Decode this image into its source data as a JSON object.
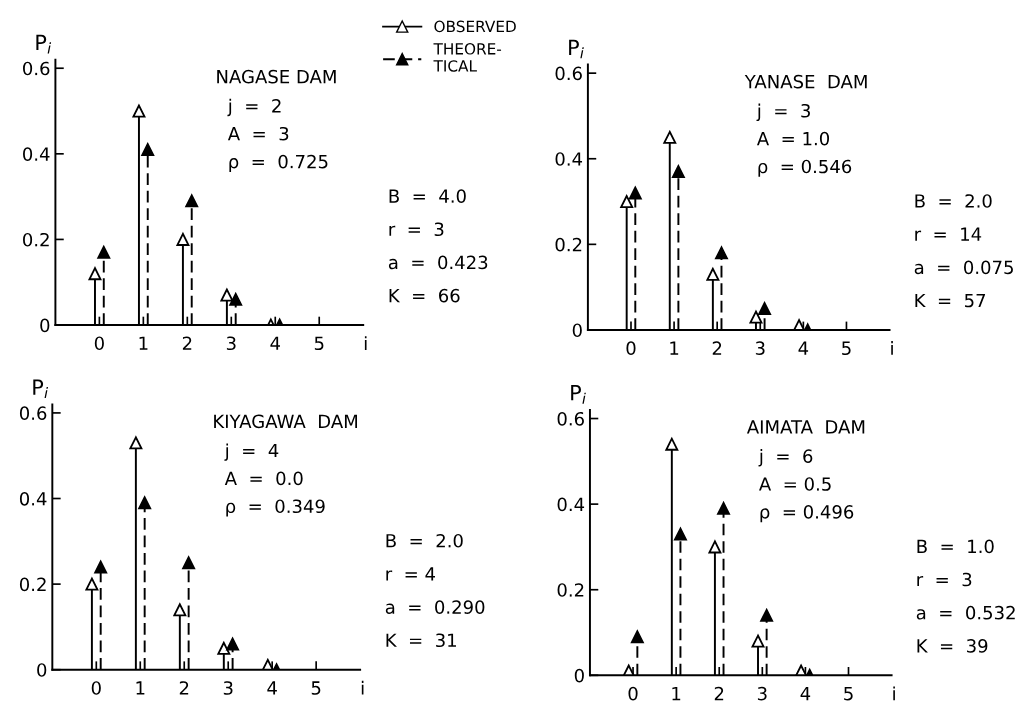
{
  "chart_data": [
    {
      "type": "lollipop",
      "title": "NAGASE DAM",
      "xlabel": "i",
      "ylabel": "P$_{i}$",
      "xlim": [
        -1,
        6
      ],
      "xticks": [
        0,
        1,
        2,
        3,
        4,
        5
      ],
      "ylim": [
        0,
        0.62
      ],
      "yticks": [
        0,
        0.2,
        0.4,
        0.6
      ],
      "grid": false,
      "marker": "triangle",
      "legend": "top right",
      "annotations": [
        "j  =  2",
        "A  =  3",
        "ρ  =  0.725",
        "B  =  4.0",
        "r  =  3",
        "a  =  0.423",
        "K  =  66"
      ],
      "series": [
        {
          "name": "OBSERVED",
          "color": "#000000",
          "line_style": "solid",
          "x": [
            -0.1,
            0.9,
            1.9,
            2.9,
            3.9
          ],
          "values": [
            0.12,
            0.5,
            0.2,
            0.07,
            0.0
          ]
        },
        {
          "name": "THEORE-\nTICAL",
          "color": "#000000",
          "line_style": "dashed",
          "x": [
            0.1,
            1.1,
            2.1,
            3.1,
            4.1
          ],
          "values": [
            0.17,
            0.41,
            0.29,
            0.06,
            0.0
          ]
        }
      ]
    },
    {
      "type": "lollipop",
      "title": "YANASE  DAM",
      "xlabel": "i",
      "ylabel": "P$_{i}$",
      "xlim": [
        -1,
        6
      ],
      "xticks": [
        0,
        1,
        2,
        3,
        4,
        5
      ],
      "ylim": [
        0,
        0.62
      ],
      "yticks": [
        0,
        0.2,
        0.4,
        0.6
      ],
      "grid": false,
      "marker": "triangle",
      "annotations": [
        "j  =  3",
        "A  = 1.0",
        "ρ  = 0.546",
        "B  =  2.0",
        "r  =  14",
        "a  =  0.075",
        "K  =  57"
      ],
      "series": [
        {
          "color": "#000000",
          "line_style": "solid",
          "x": [
            -0.1,
            0.9,
            1.9,
            2.9,
            3.9
          ],
          "values": [
            0.3,
            0.45,
            0.13,
            0.03,
            0.01
          ]
        },
        {
          "color": "#000000",
          "line_style": "dashed",
          "x": [
            0.1,
            1.1,
            2.1,
            3.1,
            4.1
          ],
          "values": [
            0.32,
            0.37,
            0.18,
            0.05,
            0.0
          ]
        }
      ]
    },
    {
      "type": "lollipop",
      "title": "KIYAGAWA  DAM",
      "xlabel": "i",
      "ylabel": "P$_{i}$",
      "xlim": [
        -1,
        6
      ],
      "xticks": [
        0,
        1,
        2,
        3,
        4,
        5
      ],
      "ylim": [
        0,
        0.62
      ],
      "yticks": [
        0,
        0.2,
        0.4,
        0.6
      ],
      "grid": false,
      "marker": "triangle",
      "annotations": [
        "j  =  4",
        "A  =  0.0",
        "ρ  =  0.349",
        "B  =  2.0",
        "r  = 4",
        "a  =  0.290",
        "K  =  31"
      ],
      "series": [
        {
          "color": "#000000",
          "line_style": "solid",
          "x": [
            -0.1,
            0.9,
            1.9,
            2.9,
            3.9
          ],
          "values": [
            0.2,
            0.53,
            0.14,
            0.05,
            0.01
          ]
        },
        {
          "color": "#000000",
          "line_style": "dashed",
          "x": [
            0.1,
            1.1,
            2.1,
            3.1,
            4.1
          ],
          "values": [
            0.24,
            0.39,
            0.25,
            0.06,
            0.0
          ]
        }
      ]
    },
    {
      "type": "lollipop",
      "title": "AIMATA  DAM",
      "xlabel": "i",
      "ylabel": "P$_{i}$",
      "xlim": [
        -1,
        6
      ],
      "xticks": [
        0,
        1,
        2,
        3,
        4,
        5
      ],
      "ylim": [
        0,
        0.62
      ],
      "yticks": [
        0,
        0.2,
        0.4,
        0.6
      ],
      "grid": false,
      "marker": "triangle",
      "annotations": [
        "j  =  6",
        "A  = 0.5",
        "ρ  = 0.496",
        "B  =  1.0",
        "r  =  3",
        "a  =  0.532",
        "K  =  39"
      ],
      "series": [
        {
          "color": "#000000",
          "line_style": "solid",
          "x": [
            -0.1,
            0.9,
            1.9,
            2.9,
            3.9
          ],
          "values": [
            0.01,
            0.54,
            0.3,
            0.08,
            0.01
          ]
        },
        {
          "color": "#000000",
          "line_style": "dashed",
          "x": [
            0.1,
            1.1,
            2.1,
            3.1,
            4.1
          ],
          "values": [
            0.09,
            0.33,
            0.39,
            0.14,
            0.0
          ]
        }
      ]
    }
  ]
}
